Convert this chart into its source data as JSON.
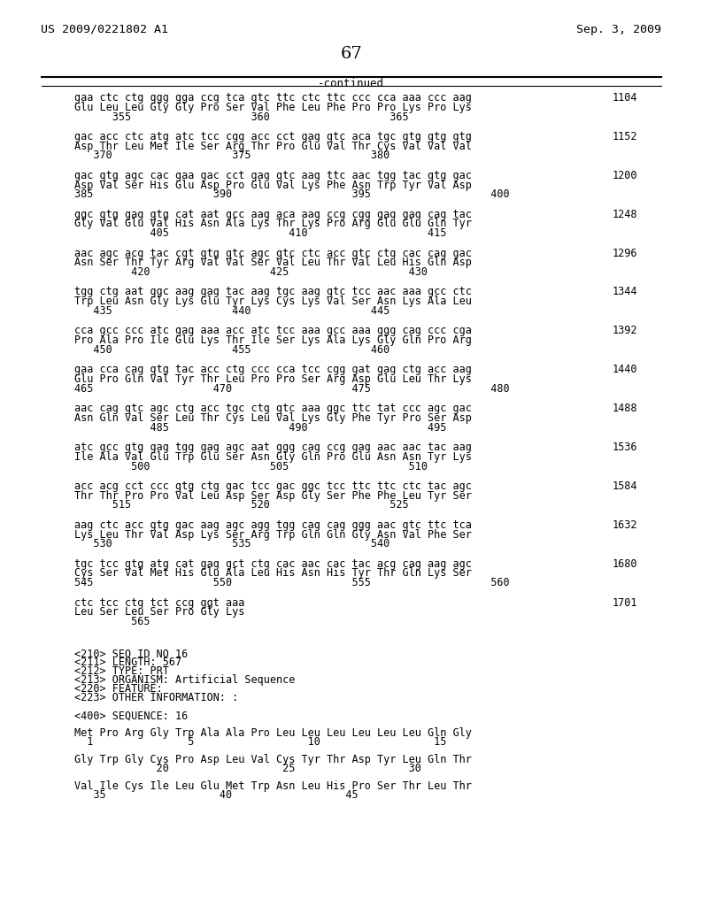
{
  "header_left": "US 2009/0221802 A1",
  "header_right": "Sep. 3, 2009",
  "page_number": "67",
  "continued_label": "-continued",
  "background_color": "#ffffff",
  "text_color": "#000000",
  "content_blocks": [
    {
      "dna": "gaa ctc ctg ggg gga ccg tca gtc ttc ctc ttc ccc cca aaa ccc aag",
      "aa": "Glu Leu Leu Gly Gly Pro Ser Val Phe Leu Phe Pro Pro Lys Pro Lys",
      "nums": "      355                   360                   365",
      "right_num": "1104"
    },
    {
      "dna": "gac acc ctc atg atc tcc cgg acc cct gag gtc aca tgc gtg gtg gtg",
      "aa": "Asp Thr Leu Met Ile Ser Arg Thr Pro Glu Val Thr Cys Val Val Val",
      "nums": "   370                   375                   380",
      "right_num": "1152"
    },
    {
      "dna": "gac gtg agc cac gaa gac cct gag gtc aag ttc aac tgg tac gtg gac",
      "aa": "Asp Val Ser His Glu Asp Pro Glu Val Lys Phe Asn Trp Tyr Val Asp",
      "nums": "385                   390                   395                   400",
      "right_num": "1200"
    },
    {
      "dna": "ggc gtg gag gtg cat aat gcc aag aca aag ccg cgg gag gag cag tac",
      "aa": "Gly Val Glu Val His Asn Ala Lys Thr Lys Pro Arg Glu Glu Gln Tyr",
      "nums": "            405                   410                   415",
      "right_num": "1248"
    },
    {
      "dna": "aac agc acg tac cgt gtg gtc agc gtc ctc acc gtc ctg cac cag gac",
      "aa": "Asn Ser Thr Tyr Arg Val Val Ser Val Leu Thr Val Leu His Gln Asp",
      "nums": "         420                   425                   430",
      "right_num": "1296"
    },
    {
      "dna": "tgg ctg aat ggc aag gag tac aag tgc aag gtc tcc aac aaa gcc ctc",
      "aa": "Trp Leu Asn Gly Lys Glu Tyr Lys Cys Lys Val Ser Asn Lys Ala Leu",
      "nums": "   435                   440                   445",
      "right_num": "1344"
    },
    {
      "dna": "cca gcc ccc atc gag aaa acc atc tcc aaa gcc aaa ggg cag ccc cga",
      "aa": "Pro Ala Pro Ile Glu Lys Thr Ile Ser Lys Ala Lys Gly Gln Pro Arg",
      "nums": "   450                   455                   460",
      "right_num": "1392"
    },
    {
      "dna": "gaa cca cag gtg tac acc ctg ccc cca tcc cgg gat gag ctg acc aag",
      "aa": "Glu Pro Gln Val Tyr Thr Leu Pro Pro Ser Arg Asp Glu Leu Thr Lys",
      "nums": "465                   470                   475                   480",
      "right_num": "1440"
    },
    {
      "dna": "aac cag gtc agc ctg acc tgc ctg gtc aaa ggc ttc tat ccc agc gac",
      "aa": "Asn Gln Val Ser Leu Thr Cys Leu Val Lys Gly Phe Tyr Pro Ser Asp",
      "nums": "            485                   490                   495",
      "right_num": "1488"
    },
    {
      "dna": "atc gcc gtg gag tgg gag agc aat ggg cag ccg gag aac aac tac aag",
      "aa": "Ile Ala Val Glu Trp Glu Ser Asn Gly Gln Pro Glu Asn Asn Tyr Lys",
      "nums": "         500                   505                   510",
      "right_num": "1536"
    },
    {
      "dna": "acc acg cct ccc gtg ctg gac tcc gac ggc tcc ttc ttc ctc tac agc",
      "aa": "Thr Thr Pro Pro Val Leu Asp Ser Asp Gly Ser Phe Phe Leu Tyr Ser",
      "nums": "      515                   520                   525",
      "right_num": "1584"
    },
    {
      "dna": "aag ctc acc gtg gac aag agc agg tgg cag cag ggg aac gtc ttc tca",
      "aa": "Lys Leu Thr Val Asp Lys Ser Arg Trp Gln Gln Gly Asn Val Phe Ser",
      "nums": "   530                   535                   540",
      "right_num": "1632"
    },
    {
      "dna": "tgc tcc gtg atg cat gag gct ctg cac aac cac tac acg cag aag agc",
      "aa": "Cys Ser Val Met His Glu Ala Leu His Asn His Tyr Thr Gln Lys Ser",
      "nums": "545                   550                   555                   560",
      "right_num": "1680"
    },
    {
      "dna": "ctc tcc ctg tct ccg ggt aaa",
      "aa": "Leu Ser Leu Ser Pro Gly Lys",
      "nums": "         565",
      "right_num": "1701"
    }
  ],
  "footer_lines": [
    "<210> SEQ ID NO 16",
    "<211> LENGTH: 567",
    "<212> TYPE: PRT",
    "<213> ORGANISM: Artificial Sequence",
    "<220> FEATURE:",
    "<223> OTHER INFORMATION: :",
    "",
    "<400> SEQUENCE: 16",
    "",
    "Met Pro Arg Gly Trp Ala Ala Pro Leu Leu Leu Leu Leu Leu Gln Gly",
    "  1               5                  10                  15",
    "",
    "Gly Trp Gly Cys Pro Asp Leu Val Cys Tyr Thr Asp Tyr Leu Gln Thr",
    "             20                  25                  30",
    "",
    "Val Ile Cys Ile Leu Glu Met Trp Asn Leu His Pro Ser Thr Leu Thr",
    "   35                  40                  45"
  ]
}
